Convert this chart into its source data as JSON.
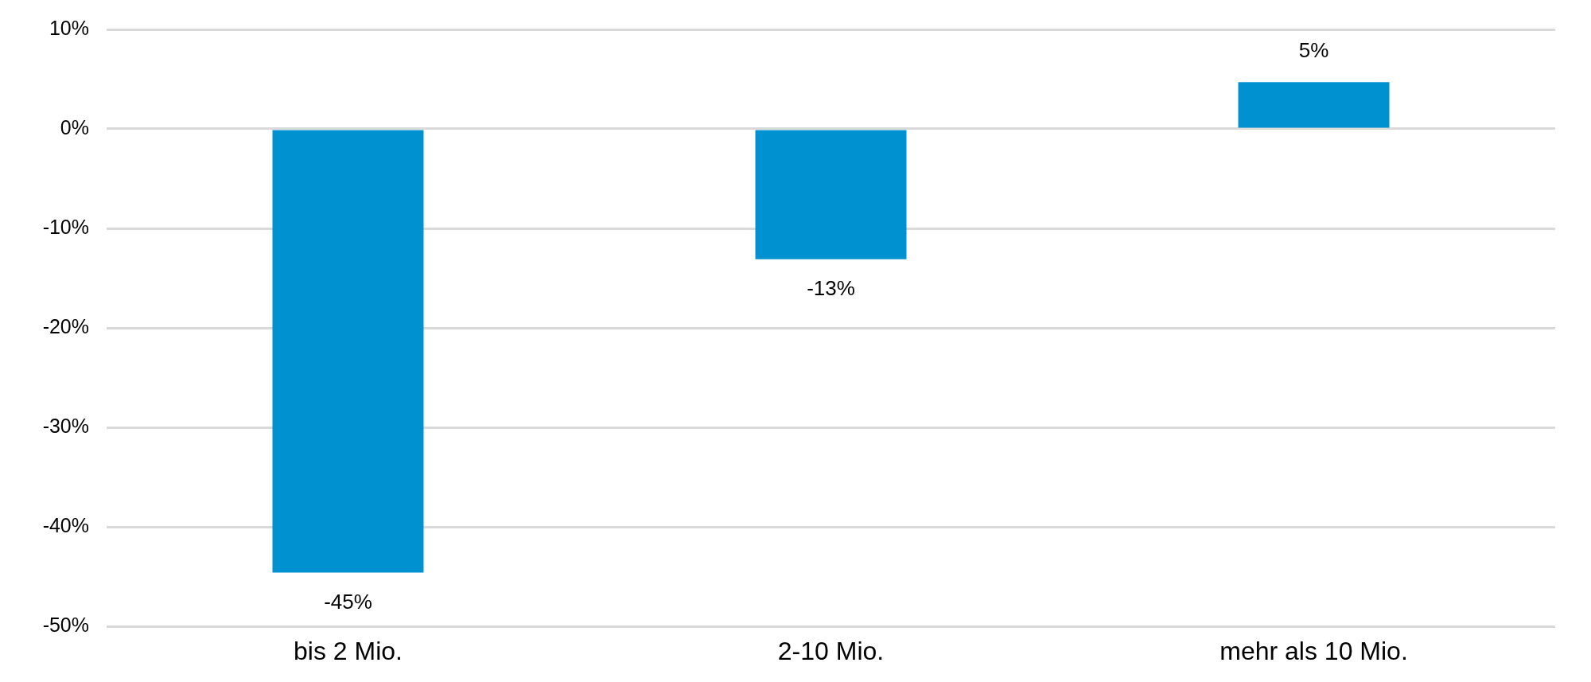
{
  "chart_data": {
    "type": "bar",
    "categories": [
      "bis 2 Mio.",
      "2-10 Mio.",
      "mehr als 10 Mio."
    ],
    "values": [
      -44.6,
      -13.1,
      4.7
    ],
    "color": "#0092d0",
    "value_labels": [
      "-45%",
      "-13%",
      "5%"
    ],
    "ylim": [
      -50,
      10
    ],
    "yticks": [
      {
        "value": -50,
        "label": "-50%"
      },
      {
        "value": -40,
        "label": "-40%"
      },
      {
        "value": -30,
        "label": "-30%"
      },
      {
        "value": -20,
        "label": "-20%"
      },
      {
        "value": -10,
        "label": "-10%"
      },
      {
        "value": 0,
        "label": "0%"
      },
      {
        "value": 10,
        "label": "10%"
      }
    ],
    "grid": "y",
    "legend": false
  }
}
